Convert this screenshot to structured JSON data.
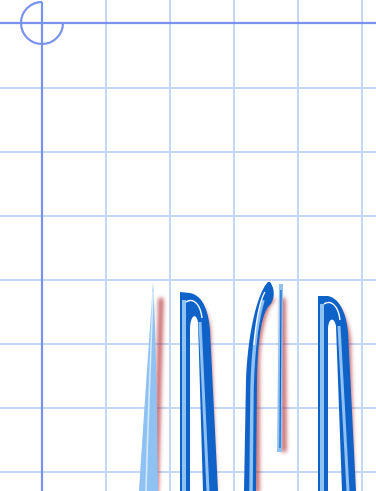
{
  "screen": {
    "kind": "icon-artwork",
    "subject": "pen-plotter"
  },
  "colors": {
    "background": "#ffffff",
    "grid_line": "#c5d6f6",
    "axis_line": "#7892ee",
    "letter_fill_dark": "#0e62c8",
    "letter_fill_light": "#8fc1f2",
    "letter_highlight": "#ffffff",
    "letter_shadow": "#b0292d"
  },
  "icons": {
    "origin_marker": "crosshair-circle-icon",
    "lettering": "handwritten-ink-strokes"
  }
}
